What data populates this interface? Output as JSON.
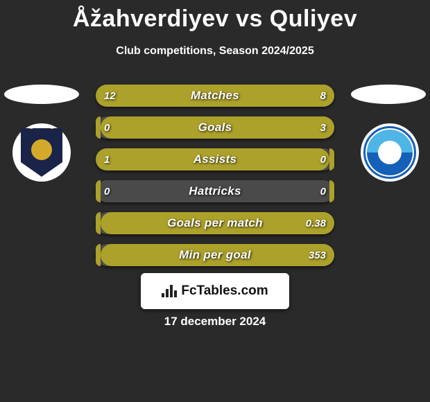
{
  "title": "Åžahverdiyev vs Quliyev",
  "subtitle": "Club competitions, Season 2024/2025",
  "date": "17 december 2024",
  "logo_text": "FcTables.com",
  "colors": {
    "background": "#2a2a2a",
    "bar_bg": "#4a4a4a",
    "left_fill": "#aca12b",
    "right_fill": "#aca12b",
    "text": "#ffffff"
  },
  "stats": [
    {
      "label": "Matches",
      "left_val": "12",
      "right_val": "8",
      "left_pct": 60,
      "right_pct": 40
    },
    {
      "label": "Goals",
      "left_val": "0",
      "right_val": "3",
      "left_pct": 2,
      "right_pct": 98
    },
    {
      "label": "Assists",
      "left_val": "1",
      "right_val": "0",
      "left_pct": 98,
      "right_pct": 2
    },
    {
      "label": "Hattricks",
      "left_val": "0",
      "right_val": "0",
      "left_pct": 2,
      "right_pct": 2
    },
    {
      "label": "Goals per match",
      "left_val": "",
      "right_val": "0.38",
      "left_pct": 2,
      "right_pct": 98
    },
    {
      "label": "Min per goal",
      "left_val": "",
      "right_val": "353",
      "left_pct": 2,
      "right_pct": 98
    }
  ],
  "logo_bar_heights": [
    6,
    12,
    18,
    10
  ]
}
